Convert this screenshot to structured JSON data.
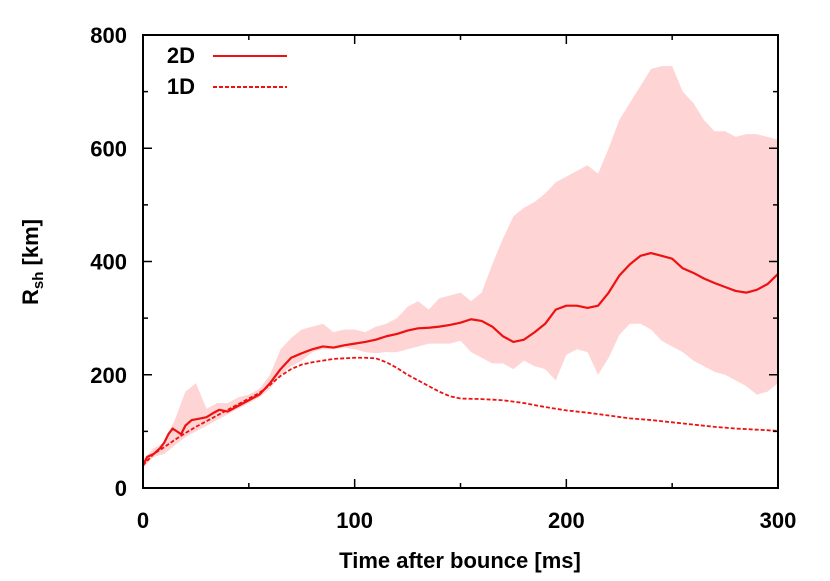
{
  "chart_data": {
    "type": "line",
    "xlabel": "Time after bounce [ms]",
    "ylabel": {
      "main": "R",
      "sub": "sh",
      "unit": " [km]"
    },
    "xlim": [
      0,
      300
    ],
    "ylim": [
      0,
      800
    ],
    "xticks": [
      0,
      100,
      200,
      300
    ],
    "yticks": [
      0,
      200,
      400,
      600,
      800
    ],
    "grid": false,
    "legend_position": "top-left",
    "colors": {
      "line": "#ee1111",
      "band": "#ffd4d4",
      "axis": "#000000"
    },
    "band": {
      "x": [
        0,
        5,
        10,
        15,
        20,
        25,
        30,
        35,
        40,
        45,
        50,
        55,
        60,
        65,
        70,
        75,
        80,
        85,
        90,
        95,
        100,
        105,
        110,
        115,
        120,
        125,
        130,
        135,
        140,
        145,
        150,
        155,
        160,
        165,
        170,
        175,
        180,
        185,
        190,
        195,
        200,
        205,
        210,
        215,
        220,
        225,
        230,
        235,
        240,
        245,
        250,
        255,
        260,
        265,
        270,
        275,
        280,
        285,
        290,
        295,
        300
      ],
      "upper": [
        50,
        70,
        80,
        120,
        170,
        185,
        140,
        150,
        150,
        160,
        165,
        175,
        200,
        245,
        265,
        280,
        285,
        290,
        275,
        280,
        280,
        275,
        285,
        290,
        300,
        320,
        330,
        315,
        335,
        340,
        345,
        330,
        345,
        395,
        440,
        480,
        495,
        505,
        520,
        540,
        550,
        560,
        570,
        555,
        600,
        650,
        680,
        710,
        740,
        745,
        745,
        700,
        680,
        650,
        630,
        630,
        620,
        625,
        625,
        620,
        615
      ],
      "lower": [
        35,
        55,
        60,
        75,
        90,
        100,
        110,
        120,
        130,
        140,
        150,
        160,
        175,
        200,
        215,
        225,
        240,
        245,
        245,
        248,
        245,
        240,
        238,
        240,
        240,
        245,
        250,
        255,
        255,
        255,
        260,
        240,
        230,
        220,
        220,
        210,
        225,
        215,
        210,
        190,
        235,
        245,
        240,
        200,
        230,
        270,
        290,
        290,
        280,
        260,
        250,
        240,
        225,
        215,
        205,
        200,
        190,
        180,
        165,
        170,
        185
      ]
    },
    "series": [
      {
        "name": "2D",
        "style": "solid",
        "x": [
          0,
          2,
          5,
          8,
          10,
          12,
          14,
          16,
          18,
          20,
          23,
          26,
          30,
          33,
          36,
          40,
          45,
          50,
          55,
          60,
          65,
          70,
          75,
          80,
          85,
          90,
          95,
          100,
          105,
          110,
          115,
          120,
          125,
          130,
          135,
          140,
          145,
          150,
          155,
          160,
          165,
          170,
          175,
          180,
          185,
          190,
          195,
          200,
          205,
          210,
          215,
          220,
          225,
          230,
          235,
          240,
          245,
          250,
          255,
          260,
          265,
          270,
          275,
          280,
          285,
          290,
          295,
          300
        ],
        "y": [
          40,
          55,
          60,
          70,
          80,
          95,
          105,
          100,
          95,
          110,
          120,
          122,
          125,
          132,
          138,
          135,
          145,
          155,
          165,
          185,
          210,
          230,
          238,
          245,
          250,
          248,
          252,
          255,
          258,
          262,
          268,
          272,
          278,
          282,
          283,
          285,
          288,
          292,
          298,
          295,
          285,
          268,
          258,
          262,
          275,
          290,
          315,
          322,
          322,
          318,
          322,
          345,
          375,
          395,
          410,
          415,
          410,
          405,
          388,
          380,
          370,
          362,
          355,
          348,
          345,
          350,
          360,
          378
        ]
      },
      {
        "name": "1D",
        "style": "dashed",
        "x": [
          0,
          5,
          10,
          15,
          20,
          25,
          30,
          35,
          40,
          45,
          50,
          55,
          60,
          65,
          70,
          75,
          80,
          85,
          90,
          95,
          100,
          105,
          110,
          115,
          120,
          125,
          130,
          135,
          140,
          145,
          150,
          160,
          170,
          180,
          190,
          200,
          210,
          220,
          230,
          240,
          250,
          260,
          270,
          280,
          290,
          300
        ],
        "y": [
          40,
          60,
          72,
          85,
          97,
          108,
          118,
          128,
          138,
          148,
          158,
          168,
          182,
          198,
          210,
          218,
          222,
          225,
          228,
          229,
          230,
          230,
          229,
          222,
          212,
          200,
          190,
          180,
          170,
          162,
          158,
          157,
          155,
          150,
          143,
          137,
          133,
          128,
          123,
          120,
          116,
          112,
          108,
          105,
          103,
          101
        ]
      }
    ]
  }
}
